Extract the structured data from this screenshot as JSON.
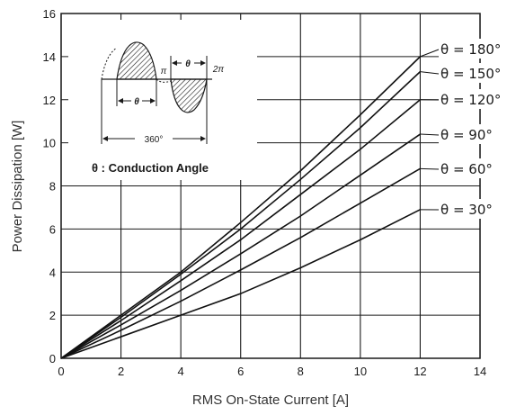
{
  "chart_data": {
    "type": "line",
    "xlabel": "RMS On-State Current [A]",
    "ylabel": "Power Dissipation [W]",
    "xlim": [
      0,
      14
    ],
    "ylim": [
      0,
      16
    ],
    "x_ticks": [
      "0",
      "2",
      "4",
      "6",
      "8",
      "10",
      "12",
      "14"
    ],
    "y_ticks": [
      "0",
      "2",
      "4",
      "6",
      "8",
      "10",
      "12",
      "14",
      "16"
    ],
    "grid": true,
    "series": [
      {
        "name": "θ = 180°",
        "x": [
          0,
          2,
          4,
          6,
          8,
          10,
          12
        ],
        "values": [
          0,
          2.0,
          4.0,
          6.3,
          8.7,
          11.3,
          14.0
        ]
      },
      {
        "name": "θ = 150°",
        "x": [
          0,
          2,
          4,
          6,
          8,
          10,
          12
        ],
        "values": [
          0,
          1.9,
          3.9,
          6.0,
          8.3,
          10.7,
          13.3
        ]
      },
      {
        "name": "θ = 120°",
        "x": [
          0,
          2,
          4,
          6,
          8,
          10,
          12
        ],
        "values": [
          0,
          1.75,
          3.6,
          5.5,
          7.6,
          9.7,
          12.0
        ]
      },
      {
        "name": "θ = 90°",
        "x": [
          0,
          2,
          4,
          6,
          8,
          10,
          12
        ],
        "values": [
          0,
          1.55,
          3.15,
          4.85,
          6.6,
          8.5,
          10.4
        ]
      },
      {
        "name": "θ = 60°",
        "x": [
          0,
          2,
          4,
          6,
          8,
          10,
          12
        ],
        "values": [
          0,
          1.3,
          2.65,
          4.1,
          5.6,
          7.2,
          8.8
        ]
      },
      {
        "name": "θ = 30°",
        "x": [
          0,
          2,
          4,
          6,
          8,
          10,
          12
        ],
        "values": [
          0,
          1.0,
          2.0,
          3.0,
          4.2,
          5.5,
          6.9
        ]
      }
    ]
  },
  "inset": {
    "pi": "π",
    "two_pi": "2π",
    "theta": "θ",
    "degrees": "360°",
    "caption": "θ : Conduction Angle"
  }
}
